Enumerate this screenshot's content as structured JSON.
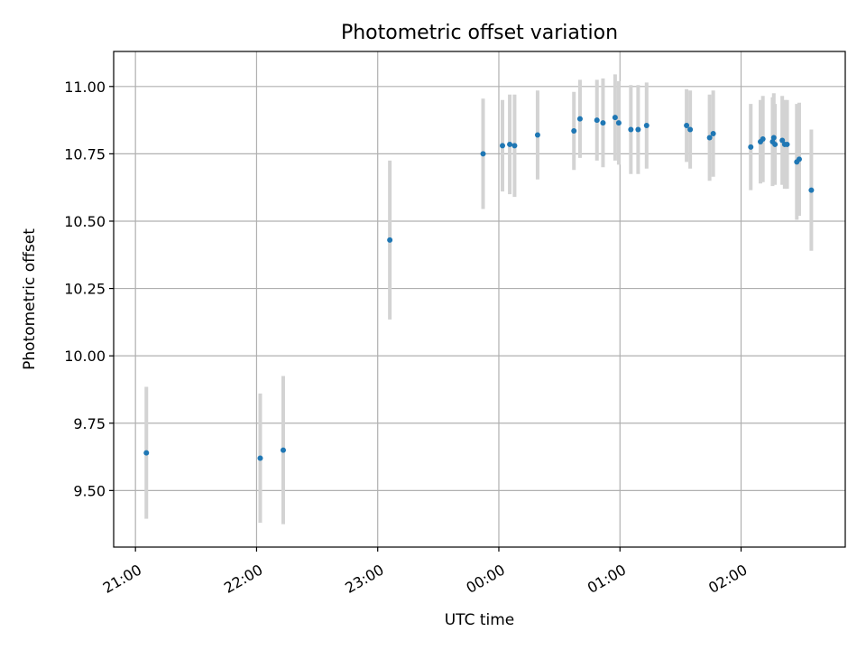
{
  "chart_data": {
    "type": "scatter",
    "title": "Photometric offset variation",
    "xlabel": "UTC time",
    "ylabel": "Photometric offset",
    "grid": true,
    "legend": "none",
    "colors": {
      "point": "#1f77b4",
      "errorbar": "#d3d3d3",
      "grid": "#b0b0b0"
    },
    "x_unit": "hours UTC since 21:00",
    "xlim": [
      -0.18,
      5.86
    ],
    "ylim": [
      9.29,
      11.13
    ],
    "x_ticks": [
      {
        "value": 0,
        "label": "21:00"
      },
      {
        "value": 1,
        "label": "22:00"
      },
      {
        "value": 2,
        "label": "23:00"
      },
      {
        "value": 3,
        "label": "00:00"
      },
      {
        "value": 4,
        "label": "01:00"
      },
      {
        "value": 5,
        "label": "02:00"
      }
    ],
    "y_ticks": [
      {
        "value": 9.5,
        "label": "9.50"
      },
      {
        "value": 9.75,
        "label": "9.75"
      },
      {
        "value": 10.0,
        "label": "10.00"
      },
      {
        "value": 10.25,
        "label": "10.25"
      },
      {
        "value": 10.5,
        "label": "10.50"
      },
      {
        "value": 10.75,
        "label": "10.75"
      },
      {
        "value": 11.0,
        "label": "11.00"
      }
    ],
    "points": [
      {
        "x": 0.09,
        "y": 9.64,
        "err": 0.245
      },
      {
        "x": 1.03,
        "y": 9.62,
        "err": 0.24
      },
      {
        "x": 1.22,
        "y": 9.65,
        "err": 0.275
      },
      {
        "x": 2.1,
        "y": 10.43,
        "err": 0.295
      },
      {
        "x": 2.87,
        "y": 10.75,
        "err": 0.205
      },
      {
        "x": 3.03,
        "y": 10.78,
        "err": 0.17
      },
      {
        "x": 3.09,
        "y": 10.785,
        "err": 0.185
      },
      {
        "x": 3.13,
        "y": 10.78,
        "err": 0.19
      },
      {
        "x": 3.32,
        "y": 10.82,
        "err": 0.165
      },
      {
        "x": 3.62,
        "y": 10.835,
        "err": 0.145
      },
      {
        "x": 3.67,
        "y": 10.88,
        "err": 0.145
      },
      {
        "x": 3.81,
        "y": 10.875,
        "err": 0.15
      },
      {
        "x": 3.86,
        "y": 10.865,
        "err": 0.165
      },
      {
        "x": 3.96,
        "y": 10.885,
        "err": 0.16
      },
      {
        "x": 3.99,
        "y": 10.865,
        "err": 0.155
      },
      {
        "x": 4.09,
        "y": 10.84,
        "err": 0.165
      },
      {
        "x": 4.15,
        "y": 10.84,
        "err": 0.165
      },
      {
        "x": 4.22,
        "y": 10.855,
        "err": 0.16
      },
      {
        "x": 4.55,
        "y": 10.855,
        "err": 0.135
      },
      {
        "x": 4.58,
        "y": 10.84,
        "err": 0.145
      },
      {
        "x": 4.74,
        "y": 10.81,
        "err": 0.16
      },
      {
        "x": 4.77,
        "y": 10.825,
        "err": 0.16
      },
      {
        "x": 5.08,
        "y": 10.775,
        "err": 0.16
      },
      {
        "x": 5.16,
        "y": 10.795,
        "err": 0.155
      },
      {
        "x": 5.18,
        "y": 10.805,
        "err": 0.16
      },
      {
        "x": 5.26,
        "y": 10.795,
        "err": 0.165
      },
      {
        "x": 5.27,
        "y": 10.81,
        "err": 0.165
      },
      {
        "x": 5.28,
        "y": 10.785,
        "err": 0.15
      },
      {
        "x": 5.34,
        "y": 10.8,
        "err": 0.165
      },
      {
        "x": 5.36,
        "y": 10.785,
        "err": 0.165
      },
      {
        "x": 5.38,
        "y": 10.785,
        "err": 0.165
      },
      {
        "x": 5.46,
        "y": 10.72,
        "err": 0.215
      },
      {
        "x": 5.48,
        "y": 10.73,
        "err": 0.21
      },
      {
        "x": 5.58,
        "y": 10.615,
        "err": 0.225
      }
    ]
  }
}
